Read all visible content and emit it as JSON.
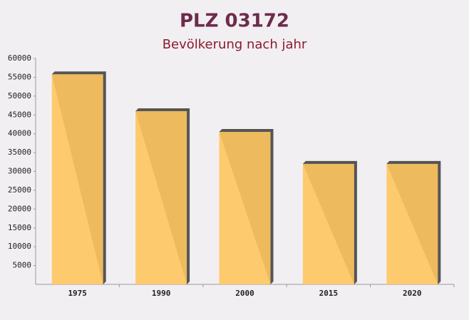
{
  "chart_data": {
    "type": "bar",
    "title": "PLZ 03172",
    "subtitle": "Bevölkerung nach jahr",
    "categories": [
      "1975",
      "1990",
      "2000",
      "2015",
      "2020"
    ],
    "values": [
      55800,
      46000,
      40500,
      32000,
      32000
    ],
    "color": "#ffc55f",
    "ylim": [
      0,
      60000
    ],
    "yticks": [
      5000,
      10000,
      15000,
      20000,
      25000,
      30000,
      35000,
      40000,
      45000,
      50000,
      55000,
      60000
    ],
    "grid": false
  }
}
